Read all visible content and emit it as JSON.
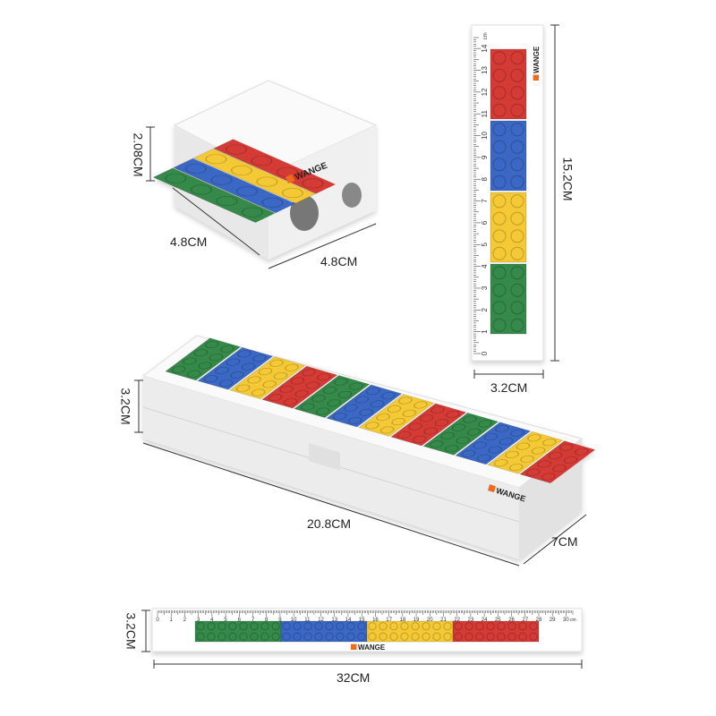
{
  "brand": "WANGE",
  "colors": {
    "red": "#d43a36",
    "yellow": "#f4c934",
    "blue": "#3a68c4",
    "green": "#34894a",
    "body": "#f2f2f2"
  },
  "dimensions": {
    "sharpener_height": "2.08CM",
    "sharpener_depth": "4.8CM",
    "sharpener_width": "4.8CM",
    "short_ruler_length": "15.2CM",
    "short_ruler_width": "3.2CM",
    "case_height": "3.2CM",
    "case_length": "20.8CM",
    "case_depth": "7CM",
    "long_ruler_height": "3.2CM",
    "long_ruler_length": "32CM"
  },
  "short_ruler_ticks": [
    "0",
    "1",
    "2",
    "3",
    "4",
    "5",
    "6",
    "7",
    "8",
    "9",
    "10",
    "11",
    "12",
    "13",
    "14"
  ],
  "short_ruler_unit": "cm",
  "long_ruler_ticks": [
    "0",
    "1",
    "2",
    "3",
    "4",
    "5",
    "6",
    "7",
    "8",
    "9",
    "10",
    "11",
    "12",
    "13",
    "14",
    "15",
    "16",
    "17",
    "18",
    "19",
    "20",
    "21",
    "22",
    "23",
    "24",
    "25",
    "26",
    "27",
    "28",
    "29",
    "30"
  ],
  "long_ruler_unit": "cm"
}
